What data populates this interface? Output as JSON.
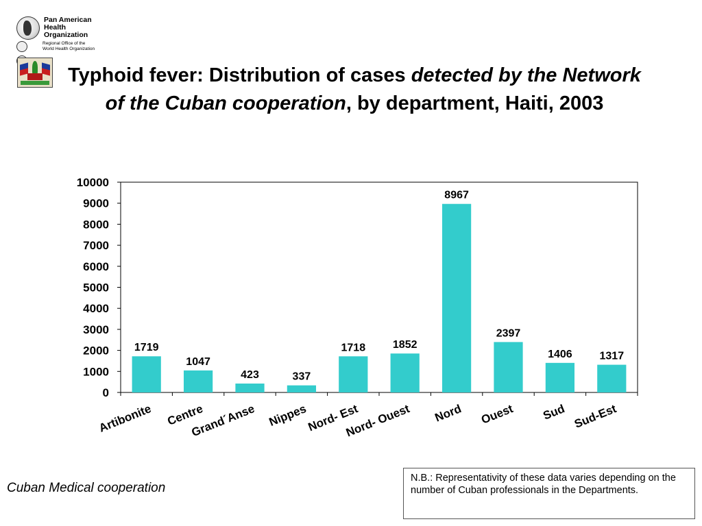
{
  "logo": {
    "org_name": "Pan American\nHealth\nOrganization",
    "sub": "Regional Office of the\nWorld Health Organization"
  },
  "title": {
    "part1": "Typhoid fever: Distribution of cases ",
    "part2_italic": "detected by the Network of the Cuban cooperation",
    "part3": ", by department, Haiti, 2003"
  },
  "chart_data": {
    "type": "bar",
    "title": "",
    "xlabel": "",
    "ylabel": "",
    "categories": [
      "Artibonite",
      "Centre",
      "Grand´Anse",
      "Nippes",
      "Nord- Est",
      "Nord- Ouest",
      "Nord",
      "Ouest",
      "Sud",
      "Sud-Est"
    ],
    "series": [
      {
        "values": [
          1719,
          1047,
          423,
          337,
          1718,
          1852,
          8967,
          2397,
          1406,
          1317
        ]
      }
    ],
    "ylim": [
      0,
      10000
    ],
    "yticks": [
      0,
      1000,
      2000,
      3000,
      4000,
      5000,
      6000,
      7000,
      8000,
      9000,
      10000
    ],
    "grid": false,
    "legend": "none",
    "bar_color": "#33cccc"
  },
  "footer": {
    "source": "Cuban Medical cooperation",
    "note": "N.B.: Representativity of these data varies depending on the number of Cuban professionals in the Departments."
  }
}
